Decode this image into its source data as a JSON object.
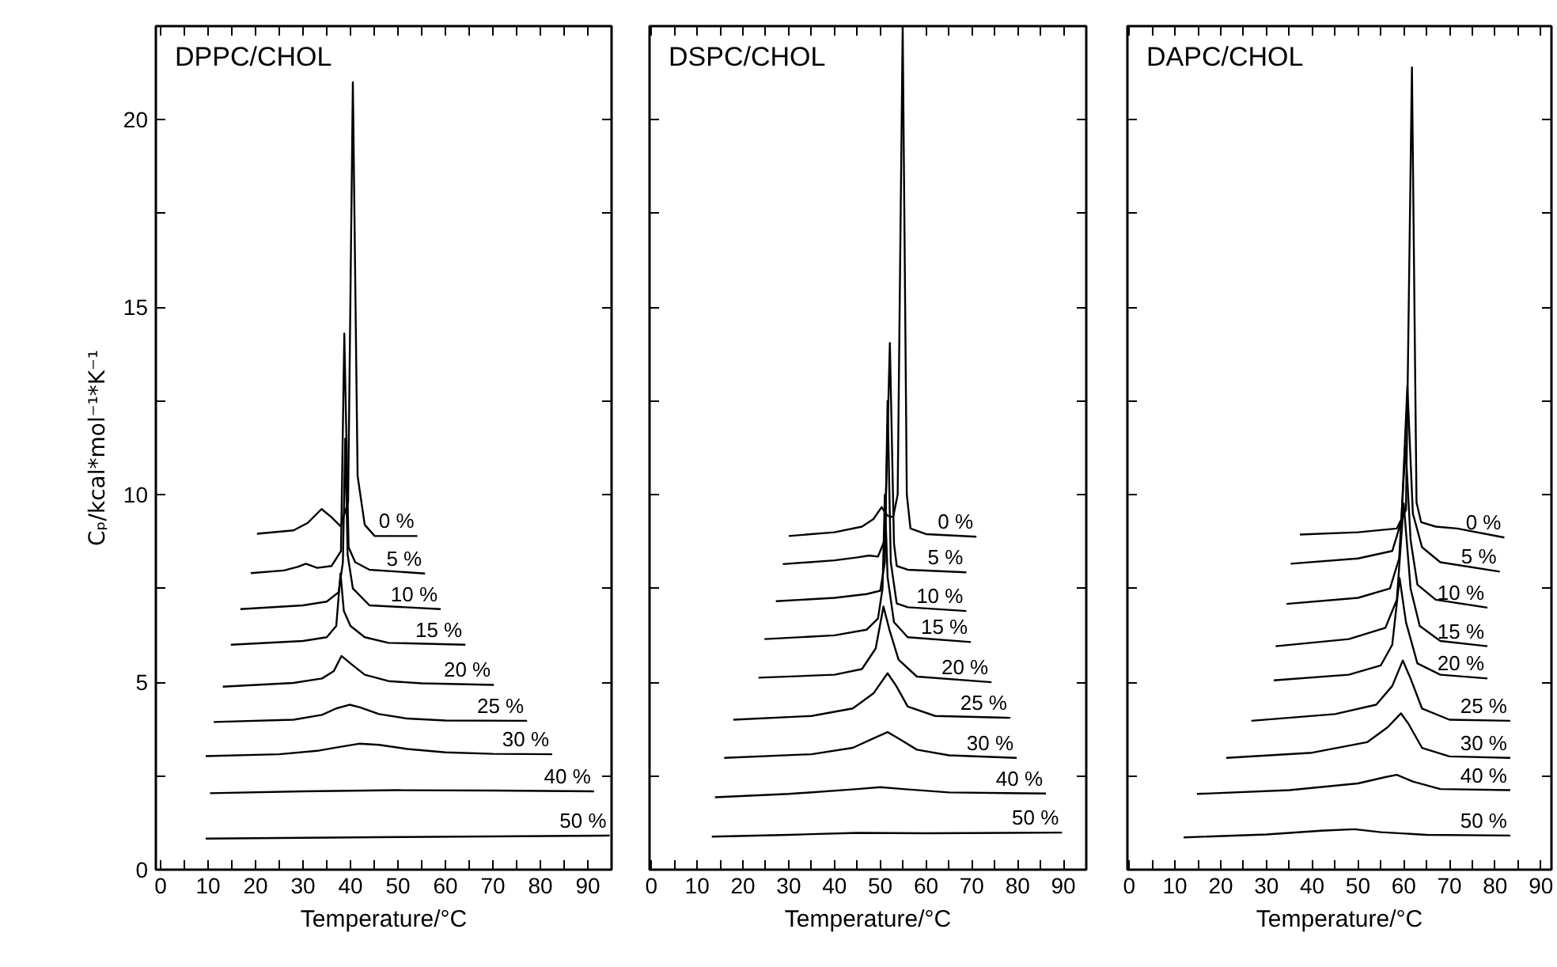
{
  "chart_data": [
    {
      "type": "line",
      "title": "DPPC/CHOL",
      "xlabel": "Temperature/°C",
      "ylabel": "Cₚ/kcal*mol⁻¹*K⁻¹",
      "xlim": [
        -1,
        95
      ],
      "ylim": [
        0,
        22.5
      ],
      "xticks": [
        0,
        {
          "value": 5,
          "label": null
        },
        10,
        {
          "value": 15,
          "label": null
        },
        20,
        {
          "value": 25,
          "label": null
        },
        30,
        {
          "value": 35,
          "label": null
        },
        40,
        {
          "value": 45,
          "label": null
        },
        50,
        {
          "value": 55,
          "label": null
        },
        60,
        {
          "value": 65,
          "label": null
        },
        70,
        {
          "value": 75,
          "label": null
        },
        80,
        {
          "value": 85,
          "label": null
        },
        90
      ],
      "yticks": [
        0,
        {
          "value": 2.5,
          "label": null
        },
        5,
        {
          "value": 7.5,
          "label": null
        },
        10,
        {
          "value": 12.5,
          "label": null
        },
        15,
        {
          "value": 17.5,
          "label": null
        },
        20
      ],
      "series": [
        {
          "name": "0 %",
          "color": "#000000",
          "x": [
            20.3,
            28,
            31,
            33.9,
            36,
            37.9,
            39.5,
            40.5,
            41.5,
            43,
            45.1,
            54.1
          ],
          "values": [
            8.96,
            9.05,
            9.25,
            9.62,
            9.4,
            9.16,
            9.8,
            21.0,
            10.5,
            9.2,
            8.9,
            8.9
          ]
        },
        {
          "name": "5 %",
          "color": "#000000",
          "x": [
            19,
            26,
            29,
            30.6,
            33,
            36,
            38,
            38.7,
            39.6,
            41,
            44,
            55.7
          ],
          "values": [
            7.91,
            7.98,
            8.08,
            8.16,
            8.05,
            8.1,
            8.5,
            14.3,
            8.6,
            8.2,
            8.0,
            7.9
          ]
        },
        {
          "name": "10 %",
          "color": "#000000",
          "x": [
            16.8,
            30,
            35,
            37.5,
            38.4,
            38.9,
            39.4,
            40.5,
            44,
            59
          ],
          "values": [
            6.95,
            7.05,
            7.15,
            7.4,
            8.2,
            11.5,
            8.4,
            7.5,
            7.05,
            6.95
          ]
        },
        {
          "name": "15 %",
          "color": "#000000",
          "x": [
            14.8,
            30,
            35,
            37,
            37.9,
            38.6,
            40,
            43,
            48,
            64.2
          ],
          "values": [
            6.0,
            6.1,
            6.2,
            6.5,
            7.9,
            6.9,
            6.5,
            6.2,
            6.05,
            6.0
          ]
        },
        {
          "name": "20 %",
          "color": "#000000",
          "x": [
            13.1,
            28,
            34,
            36.5,
            38.1,
            40,
            43,
            48,
            55,
            70.2
          ],
          "values": [
            4.88,
            4.98,
            5.1,
            5.3,
            5.7,
            5.5,
            5.2,
            5.03,
            4.97,
            4.93
          ]
        },
        {
          "name": "25 %",
          "color": "#000000",
          "x": [
            11.2,
            28,
            34,
            37,
            39.8,
            42,
            46,
            52,
            60,
            77.2
          ],
          "values": [
            3.94,
            4.0,
            4.13,
            4.3,
            4.4,
            4.33,
            4.15,
            4.03,
            3.98,
            3.97
          ]
        },
        {
          "name": "30 %",
          "color": "#000000",
          "x": [
            9.5,
            25,
            33,
            38,
            41.8,
            46,
            52,
            60,
            70,
            82.5
          ],
          "values": [
            3.03,
            3.08,
            3.17,
            3.28,
            3.36,
            3.33,
            3.22,
            3.13,
            3.09,
            3.08
          ]
        },
        {
          "name": "40 %",
          "color": "#000000",
          "x": [
            10.4,
            30,
            50,
            70,
            91.3
          ],
          "values": [
            2.04,
            2.09,
            2.12,
            2.11,
            2.09
          ]
        },
        {
          "name": "50 %",
          "color": "#000000",
          "x": [
            9.5,
            50,
            94.6
          ],
          "values": [
            0.83,
            0.87,
            0.91
          ]
        }
      ]
    },
    {
      "type": "line",
      "title": "DSPC/CHOL",
      "xlabel": "Temperature/°C",
      "tick_labels": "x",
      "xlim": [
        -0.4,
        95
      ],
      "ylim": [
        0,
        22.5
      ],
      "xticks": [
        0,
        {
          "value": 5,
          "label": null
        },
        10,
        {
          "value": 15,
          "label": null
        },
        20,
        {
          "value": 25,
          "label": null
        },
        30,
        {
          "value": 35,
          "label": null
        },
        40,
        {
          "value": 45,
          "label": null
        },
        50,
        {
          "value": 55,
          "label": null
        },
        60,
        {
          "value": 65,
          "label": null
        },
        70,
        {
          "value": 75,
          "label": null
        },
        80,
        {
          "value": 85,
          "label": null
        },
        90
      ],
      "yticks": [
        0,
        {
          "value": 2.5,
          "label": null
        },
        5,
        {
          "value": 7.5,
          "label": null
        },
        10,
        {
          "value": 12.5,
          "label": null
        },
        15,
        {
          "value": 17.5,
          "label": null
        },
        20
      ],
      "series": [
        {
          "name": "0 %",
          "color": "#000000",
          "x": [
            30,
            40,
            46,
            48.5,
            50.3,
            51.5,
            52.8,
            53.8,
            54.9,
            55.8,
            56.6,
            60,
            71
          ],
          "values": [
            8.9,
            9.0,
            9.15,
            9.35,
            9.67,
            9.45,
            9.4,
            10,
            22.5,
            10,
            9.1,
            8.95,
            8.88
          ]
        },
        {
          "name": "5 %",
          "color": "#000000",
          "x": [
            28.7,
            40,
            45,
            47.6,
            49.5,
            51,
            52.1,
            53,
            53.6,
            56,
            68.8
          ],
          "values": [
            8.15,
            8.25,
            8.33,
            8.38,
            8.35,
            8.8,
            14.05,
            8.7,
            8.1,
            8.0,
            7.93
          ]
        },
        {
          "name": "10 %",
          "color": "#000000",
          "x": [
            27.2,
            40,
            47,
            50,
            51,
            51.6,
            52.3,
            53.6,
            56,
            68.8
          ],
          "values": [
            7.16,
            7.25,
            7.35,
            7.44,
            8.2,
            12.5,
            8.2,
            7.1,
            7.0,
            6.9
          ]
        },
        {
          "name": "15 %",
          "color": "#000000",
          "x": [
            24.7,
            40,
            47,
            49.5,
            50.5,
            51,
            51.6,
            53,
            56,
            69.8
          ],
          "values": [
            6.15,
            6.25,
            6.4,
            6.7,
            7.5,
            10.0,
            7.8,
            6.6,
            6.2,
            6.07
          ]
        },
        {
          "name": "20 %",
          "color": "#000000",
          "x": [
            23.4,
            40,
            46,
            49,
            50.7,
            52,
            54,
            58,
            74.3
          ],
          "values": [
            5.12,
            5.2,
            5.35,
            5.9,
            7.02,
            6.4,
            5.6,
            5.15,
            5.0
          ]
        },
        {
          "name": "25 %",
          "color": "#000000",
          "x": [
            17.9,
            35,
            44,
            48.5,
            51.6,
            53.5,
            56,
            62,
            78.4
          ],
          "values": [
            4.0,
            4.1,
            4.3,
            4.7,
            5.24,
            4.9,
            4.35,
            4.1,
            4.05
          ]
        },
        {
          "name": "30 %",
          "color": "#000000",
          "x": [
            15.9,
            35,
            44,
            48.5,
            51.6,
            54,
            58,
            65,
            79.8
          ],
          "values": [
            2.98,
            3.08,
            3.25,
            3.5,
            3.67,
            3.5,
            3.2,
            3.05,
            2.98
          ]
        },
        {
          "name": "40 %",
          "color": "#000000",
          "x": [
            13.9,
            30,
            45,
            50,
            55,
            65,
            86.2
          ],
          "values": [
            1.93,
            2.02,
            2.15,
            2.2,
            2.15,
            2.06,
            2.03
          ]
        },
        {
          "name": "50 %",
          "color": "#000000",
          "x": [
            13.2,
            30,
            45,
            60,
            89.7
          ],
          "values": [
            0.88,
            0.93,
            0.98,
            0.97,
            0.99
          ]
        }
      ]
    },
    {
      "type": "line",
      "title": "DAPC/CHOL",
      "xlabel": "Temperature/°C",
      "tick_labels": "x",
      "xlim": [
        -0.4,
        92.3
      ],
      "ylim": [
        0,
        22.5
      ],
      "xticks": [
        0,
        {
          "value": 5,
          "label": null
        },
        10,
        {
          "value": 15,
          "label": null
        },
        20,
        {
          "value": 25,
          "label": null
        },
        30,
        {
          "value": 35,
          "label": null
        },
        40,
        {
          "value": 45,
          "label": null
        },
        50,
        {
          "value": 55,
          "label": null
        },
        60,
        {
          "value": 65,
          "label": null
        },
        70,
        {
          "value": 75,
          "label": null
        },
        80,
        {
          "value": 85,
          "label": null
        },
        90
      ],
      "yticks": [
        0,
        {
          "value": 2.5,
          "label": null
        },
        5,
        {
          "value": 7.5,
          "label": null
        },
        10,
        {
          "value": 12.5,
          "label": null
        },
        15,
        {
          "value": 17.5,
          "label": null
        },
        20
      ],
      "series": [
        {
          "name": "0 %",
          "color": "#000000",
          "x": [
            37.3,
            50,
            58.5,
            60.5,
            61.8,
            62.8,
            63.8,
            67,
            71.7,
            82
          ],
          "values": [
            8.94,
            9.0,
            9.1,
            9.6,
            21.4,
            9.8,
            9.27,
            9.15,
            9.1,
            8.86
          ]
        },
        {
          "name": "5 %",
          "color": "#000000",
          "x": [
            35.3,
            50,
            57.5,
            59.5,
            60.8,
            62,
            64,
            68,
            81
          ],
          "values": [
            8.16,
            8.3,
            8.5,
            9.3,
            12.9,
            9.5,
            8.6,
            8.2,
            7.95
          ]
        },
        {
          "name": "10 %",
          "color": "#000000",
          "x": [
            34.4,
            50,
            57,
            59,
            60.4,
            61.5,
            63,
            67,
            78.3
          ],
          "values": [
            7.09,
            7.25,
            7.5,
            8.3,
            11.3,
            8.8,
            7.6,
            7.2,
            6.99
          ]
        },
        {
          "name": "15 %",
          "color": "#000000",
          "x": [
            32,
            48,
            56,
            58.5,
            60,
            61.5,
            63.5,
            68,
            78.3
          ],
          "values": [
            5.96,
            6.15,
            6.45,
            7.2,
            9.77,
            7.5,
            6.5,
            6.1,
            5.96
          ]
        },
        {
          "name": "20 %",
          "color": "#000000",
          "x": [
            31.6,
            48,
            55,
            57.5,
            59.1,
            60.5,
            63,
            68,
            78.3
          ],
          "values": [
            5.05,
            5.2,
            5.45,
            6.0,
            7.78,
            6.6,
            5.5,
            5.2,
            5.1
          ]
        },
        {
          "name": "25 %",
          "color": "#000000",
          "x": [
            26.7,
            45,
            54,
            57.5,
            59.8,
            61.5,
            64,
            70,
            83.3
          ],
          "values": [
            3.97,
            4.15,
            4.4,
            4.9,
            5.58,
            5.1,
            4.3,
            4.0,
            3.97
          ]
        },
        {
          "name": "30 %",
          "color": "#000000",
          "x": [
            21.2,
            40,
            52,
            56.5,
            59.4,
            61,
            64,
            70,
            83.3
          ],
          "values": [
            2.98,
            3.12,
            3.4,
            3.8,
            4.17,
            3.9,
            3.25,
            3.02,
            2.98
          ]
        },
        {
          "name": "40 %",
          "color": "#000000",
          "x": [
            14.8,
            35,
            50,
            56,
            58.5,
            62,
            68,
            83.3
          ],
          "values": [
            2.02,
            2.12,
            2.3,
            2.47,
            2.53,
            2.35,
            2.15,
            2.12
          ]
        },
        {
          "name": "50 %",
          "color": "#000000",
          "x": [
            11.9,
            30,
            42,
            49.2,
            55,
            65,
            83.3
          ],
          "values": [
            0.86,
            0.94,
            1.04,
            1.08,
            1.0,
            0.93,
            0.91
          ]
        }
      ]
    }
  ]
}
